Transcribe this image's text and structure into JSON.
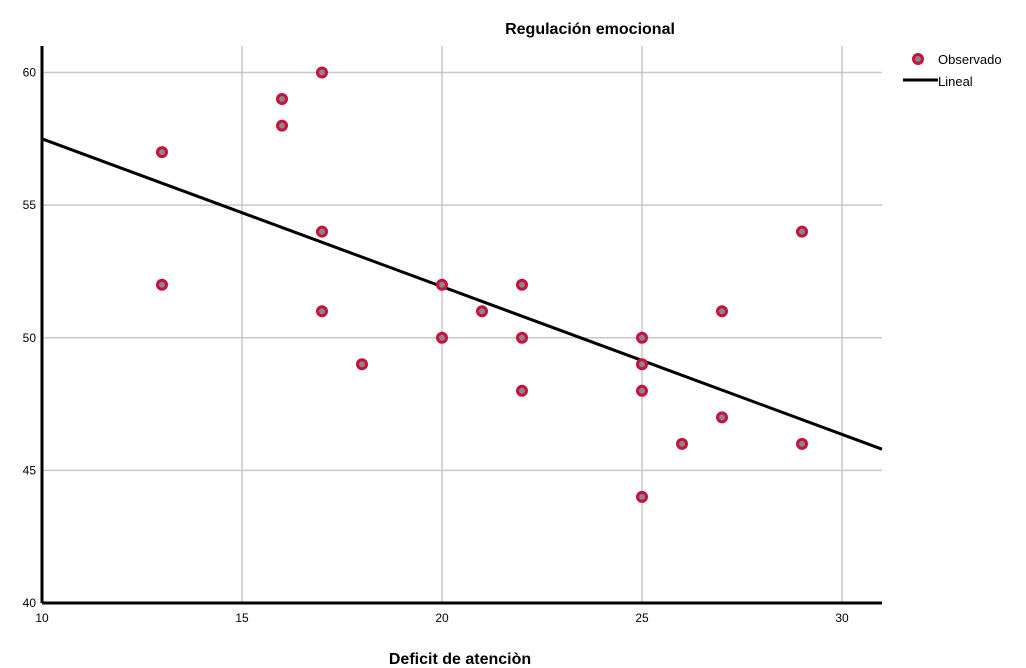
{
  "chart_data": {
    "type": "scatter",
    "title": "Regulación emocional",
    "xlabel": "Deficit de atenciòn",
    "ylabel": "",
    "xlim": [
      10,
      31
    ],
    "ylim": [
      40,
      61
    ],
    "x_ticks": [
      "10",
      "15",
      "20",
      "25",
      "30"
    ],
    "y_ticks": [
      "40",
      "45",
      "50",
      "55",
      "60"
    ],
    "grid": true,
    "legend_position": "top-right",
    "series": [
      {
        "name": "Observado",
        "kind": "points",
        "color": "#c8103e",
        "points": [
          [
            13,
            57
          ],
          [
            13,
            52
          ],
          [
            16,
            59
          ],
          [
            16,
            58
          ],
          [
            17,
            60
          ],
          [
            17,
            54
          ],
          [
            17,
            51
          ],
          [
            18,
            49
          ],
          [
            20,
            52
          ],
          [
            20,
            50
          ],
          [
            21,
            51
          ],
          [
            22,
            52
          ],
          [
            22,
            50
          ],
          [
            22,
            48
          ],
          [
            25,
            50
          ],
          [
            25,
            49
          ],
          [
            25,
            48
          ],
          [
            25,
            44
          ],
          [
            26,
            46
          ],
          [
            27,
            51
          ],
          [
            27,
            47
          ],
          [
            29,
            54
          ],
          [
            29,
            46
          ]
        ]
      },
      {
        "name": "Lineal",
        "kind": "line",
        "color": "#000000",
        "points": [
          [
            10,
            57.5
          ],
          [
            31,
            45.8
          ]
        ]
      }
    ]
  }
}
